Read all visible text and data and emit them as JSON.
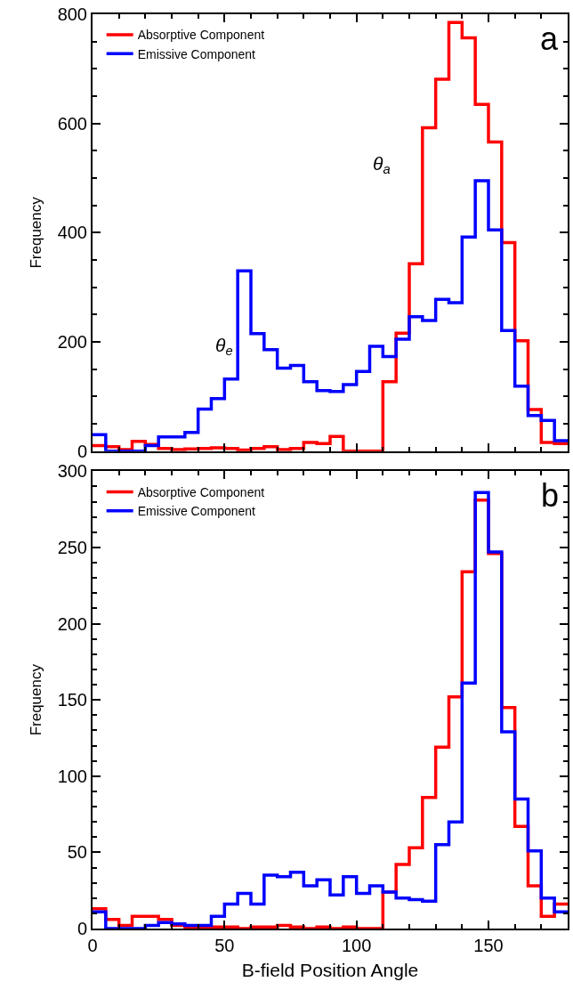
{
  "chart_data": [
    {
      "type": "histogram",
      "ylabel": "Frequency",
      "bins": [
        0,
        5,
        10,
        15,
        20,
        25,
        30,
        35,
        40,
        45,
        50,
        55,
        60,
        65,
        70,
        75,
        80,
        85,
        90,
        95,
        100,
        105,
        110,
        115,
        120,
        125,
        130,
        135,
        140,
        145,
        150,
        155,
        160,
        165,
        170,
        175,
        180
      ],
      "series": [
        {
          "name": "Absorptive Component",
          "color": "#ff0000",
          "values": [
            10,
            8,
            3,
            18,
            12,
            5,
            3,
            4,
            5,
            6,
            5,
            2,
            5,
            8,
            3,
            5,
            16,
            14,
            27,
            0,
            0,
            0,
            127,
            216,
            343,
            592,
            681,
            785,
            757,
            635,
            566,
            382,
            202,
            76,
            16,
            14
          ]
        },
        {
          "name": "Emissive Component",
          "color": "#0000ff",
          "values": [
            30,
            0,
            0,
            0,
            10,
            26,
            26,
            34,
            77,
            96,
            132,
            330,
            215,
            186,
            152,
            157,
            127,
            111,
            109,
            122,
            146,
            192,
            173,
            205,
            246,
            239,
            278,
            272,
            392,
            495,
            405,
            221,
            119,
            65,
            56,
            19
          ]
        }
      ],
      "xlim": [
        0,
        180
      ],
      "xticks": [
        0,
        50,
        100,
        150
      ],
      "ylim": [
        0,
        800
      ],
      "yticks": [
        0,
        200,
        400,
        600,
        800
      ],
      "tick_labels": "y",
      "legend": "top left",
      "annotations": [
        "θ$_{e}$",
        "θ$_{a}$",
        "a"
      ]
    },
    {
      "type": "histogram",
      "xlabel": "B-field Position Angle",
      "ylabel": "Frequency",
      "bins": [
        0,
        5,
        10,
        15,
        20,
        25,
        30,
        35,
        40,
        45,
        50,
        55,
        60,
        65,
        70,
        75,
        80,
        85,
        90,
        95,
        100,
        105,
        110,
        115,
        120,
        125,
        130,
        135,
        140,
        145,
        150,
        155,
        160,
        165,
        170,
        175,
        180
      ],
      "series": [
        {
          "name": "Absorptive Component",
          "color": "#ff0000",
          "values": [
            13,
            6,
            2,
            8,
            8,
            6,
            2,
            1,
            1,
            1,
            1,
            0,
            1,
            1,
            2,
            1,
            0,
            1,
            0,
            1,
            0,
            0,
            24,
            42,
            53,
            86,
            119,
            152,
            234,
            281,
            246,
            145,
            67,
            28,
            8,
            16
          ]
        },
        {
          "name": "Emissive Component",
          "color": "#0000ff",
          "values": [
            11,
            0,
            0,
            0,
            2,
            4,
            3,
            2,
            2,
            8,
            16,
            23,
            16,
            35,
            34,
            37,
            28,
            32,
            22,
            34,
            23,
            28,
            24,
            20,
            19,
            18,
            55,
            70,
            161,
            286,
            247,
            129,
            85,
            51,
            20,
            11
          ]
        }
      ],
      "xlim": [
        0,
        180
      ],
      "xticks": [
        0,
        50,
        100,
        150
      ],
      "ylim": [
        0,
        300
      ],
      "yticks": [
        0,
        50,
        100,
        150,
        200,
        250,
        300
      ],
      "legend": "top left",
      "annotations": [
        "b"
      ]
    }
  ]
}
